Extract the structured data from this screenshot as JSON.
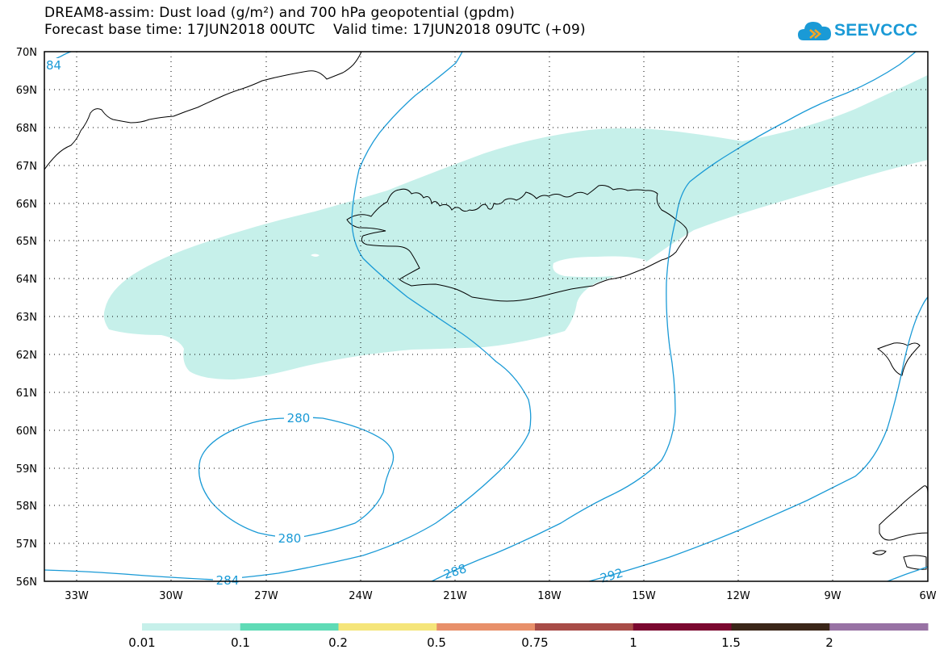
{
  "title": {
    "line1": "DREAM8-assim: Dust load (g/m²) and 700 hPa geopotential (gpdm)",
    "line2": "Forecast base time: 17JUN2018 00UTC    Valid time: 17JUN2018 09UTC (+09)"
  },
  "logo": {
    "text": "SEEVCCC"
  },
  "map": {
    "lat_labels": [
      "70N",
      "69N",
      "68N",
      "67N",
      "66N",
      "65N",
      "64N",
      "63N",
      "62N",
      "61N",
      "60N",
      "59N",
      "58N",
      "57N",
      "56N"
    ],
    "lon_labels": [
      "33W",
      "30W",
      "27W",
      "24W",
      "21W",
      "18W",
      "15W",
      "12W",
      "9W",
      "6W"
    ],
    "contour_labels": {
      "c280_top": "280",
      "c280_bottom": "280",
      "c284_bottom": "284",
      "c284_topleft": "84",
      "c288": "288",
      "c292": "292"
    },
    "colors": {
      "dust_low": "#c6f0ea",
      "contour": "#1a9ad6",
      "coast": "#000000"
    }
  },
  "colorbar": {
    "labels": [
      "0.01",
      "0.1",
      "0.2",
      "0.5",
      "0.75",
      "1",
      "1.5",
      "2"
    ],
    "colors": [
      "#c6f0ea",
      "#5fdbb6",
      "#f5e57a",
      "#e8906a",
      "#a84c47",
      "#7b0830",
      "#3b2619",
      "#9872a4"
    ]
  }
}
